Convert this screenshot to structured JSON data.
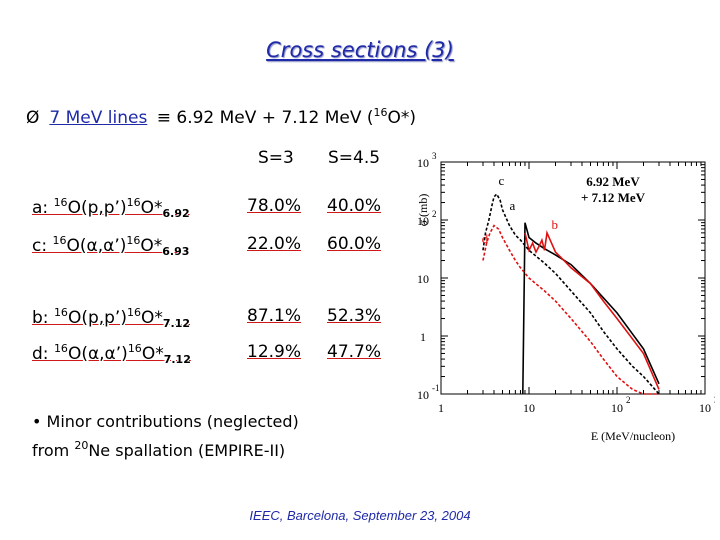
{
  "title": "Cross sections (3)",
  "bullet": {
    "arrow": "Ø",
    "lines_label": "7 MeV lines",
    "equiv": "≡",
    "text": "6.92 MeV + 7.12 MeV (",
    "nucleus_sup": "16",
    "nucleus": "O*)"
  },
  "table": {
    "headers": [
      "S=3",
      "S=4.5"
    ],
    "rows": [
      {
        "prefix": "a: ",
        "sup1": "16",
        "mid": "O(p,p’)",
        "sup2": "16",
        "end": "O*",
        "sub": "6.92",
        "v1": "78.0%",
        "v2": "40.0%"
      },
      {
        "prefix": "c: ",
        "sup1": "16",
        "mid": "O(α,α’)",
        "sup2": "16",
        "end": "O*",
        "sub": "6.93",
        "v1": "22.0%",
        "v2": "60.0%"
      },
      {
        "prefix": "b: ",
        "sup1": "16",
        "mid": "O(p,p’)",
        "sup2": "16",
        "end": "O*",
        "sub": "7.12",
        "v1": "87.1%",
        "v2": "52.3%"
      },
      {
        "prefix": "d: ",
        "sup1": "16",
        "mid": "O(α,α’)",
        "sup2": "16",
        "end": "O*",
        "sub": "7.12",
        "v1": "12.9%",
        "v2": "47.7%"
      }
    ]
  },
  "note": {
    "line1": "• Minor contributions (neglected)",
    "line2_pre": "from ",
    "line2_sup": "20",
    "line2_post": "Ne spallation (EMPIRE-II)"
  },
  "footer": "IEEC, Barcelona, September 23, 2004",
  "chart_data": {
    "type": "line",
    "xscale": "log",
    "yscale": "log",
    "xlim": [
      1,
      1000
    ],
    "ylim": [
      0.1,
      1000
    ],
    "xlabel": "E (MeV/nucleon)",
    "ylabel": "σ (mb)",
    "legend": [
      "6.92 MeV",
      "+ 7.12 MeV"
    ],
    "xticks": [
      {
        "base": "1",
        "exp": ""
      },
      {
        "base": "10",
        "exp": ""
      },
      {
        "base": "10",
        "exp": "2"
      },
      {
        "base": "10",
        "exp": "3"
      }
    ],
    "yticks": [
      {
        "base": "10",
        "exp": "-1"
      },
      {
        "base": "1",
        "exp": ""
      },
      {
        "base": "10",
        "exp": ""
      },
      {
        "base": "10",
        "exp": "2"
      },
      {
        "base": "10",
        "exp": "3"
      }
    ],
    "series": [
      {
        "name": "a",
        "style": "solid",
        "color": "#000000",
        "x": [
          8.5,
          9,
          10,
          12,
          15,
          20,
          30,
          50,
          100,
          200,
          300
        ],
        "y": [
          0.1,
          90,
          50,
          40,
          32,
          25,
          17,
          8,
          2.5,
          0.6,
          0.15
        ]
      },
      {
        "name": "b",
        "style": "solid",
        "color": "#e01010",
        "x": [
          9,
          10,
          11,
          12,
          13,
          14,
          15,
          16,
          18,
          20,
          25,
          30,
          50,
          70,
          100,
          200,
          300
        ],
        "y": [
          60,
          30,
          40,
          28,
          35,
          45,
          30,
          60,
          40,
          28,
          20,
          15,
          8,
          4,
          2,
          0.5,
          0.12
        ]
      },
      {
        "name": "c",
        "style": "dashed",
        "color": "#000000",
        "x": [
          3,
          3.2,
          3.5,
          3.8,
          4,
          4.3,
          4.7,
          5,
          6,
          7,
          8,
          10,
          15,
          20,
          30,
          50,
          70,
          100,
          150,
          200,
          300
        ],
        "y": [
          30,
          60,
          100,
          180,
          250,
          280,
          220,
          150,
          80,
          55,
          45,
          30,
          18,
          12,
          6,
          2.5,
          1.2,
          0.6,
          0.3,
          0.2,
          0.1
        ]
      },
      {
        "name": "d",
        "style": "dashed",
        "color": "#e01010",
        "x": [
          3,
          3.3,
          3.6,
          4,
          4.5,
          5,
          6,
          7,
          8,
          10,
          15,
          20,
          30,
          50,
          70,
          100,
          150,
          200,
          300
        ],
        "y": [
          20,
          40,
          60,
          80,
          70,
          50,
          30,
          20,
          15,
          10,
          6,
          4,
          2,
          0.8,
          0.4,
          0.2,
          0.12,
          0.1,
          0.1
        ]
      }
    ],
    "curve_labels": [
      {
        "name": "c",
        "x": 4.5,
        "y": 400
      },
      {
        "name": "a",
        "x": 6.0,
        "y": 150
      },
      {
        "name": "b",
        "x": 18,
        "y": 70
      },
      {
        "name": "d",
        "x": 2.9,
        "y": 40
      }
    ]
  }
}
